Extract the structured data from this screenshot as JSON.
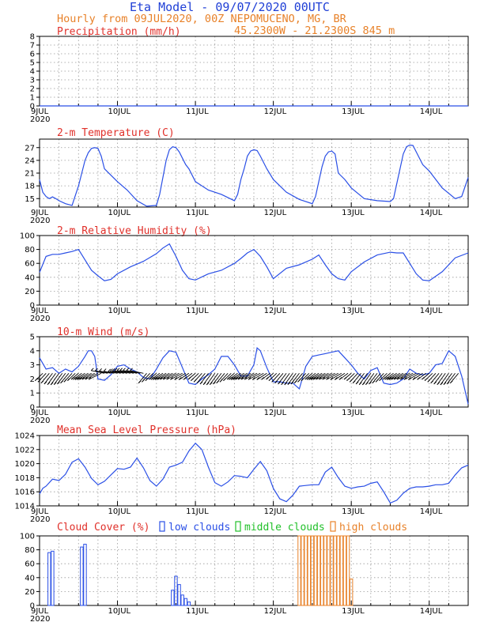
{
  "header": {
    "line1": "Eta Model - 09/07/2020 00UTC",
    "line2": "Hourly from 09JUL2020, 00Z  NEPOMUCENO, MG, BR",
    "line3": "45.2300W - 21.2300S     845  m"
  },
  "x_axis": {
    "labels": [
      "9JUL",
      "10JUL",
      "11JUL",
      "12JUL",
      "13JUL",
      "14JUL"
    ],
    "year": "2020",
    "range_hours": [
      0,
      132
    ]
  },
  "legend": {
    "low": "low clouds",
    "middle": "middle clouds",
    "high": "high clouds"
  },
  "colors": {
    "series": "#2a4fe6",
    "title": "#e0302a",
    "low": "#2a4fe6",
    "middle": "#22c02a",
    "high": "#e8822a",
    "wind_barb": "#000000"
  },
  "chart_data": [
    {
      "id": "precip",
      "type": "line",
      "title": "Precipitation (mm/h)",
      "ylim": [
        0,
        8
      ],
      "yticks": [
        0,
        1,
        2,
        3,
        4,
        5,
        6,
        7,
        8
      ],
      "x": [
        0,
        132
      ],
      "y": [
        0,
        0
      ]
    },
    {
      "id": "temp",
      "type": "line",
      "title": "2-m Temperature (C)",
      "ylim": [
        13,
        29
      ],
      "yticks": [
        15,
        18,
        21,
        24,
        27
      ],
      "x": [
        0,
        1,
        2,
        3,
        4,
        5,
        6,
        8,
        10,
        12,
        14,
        15,
        16,
        17,
        18,
        19,
        20,
        22,
        24,
        27,
        30,
        33,
        36,
        37,
        38,
        39,
        40,
        41,
        42,
        43,
        45,
        46,
        48,
        52,
        56,
        60,
        61,
        62,
        63,
        64,
        65,
        66,
        67,
        68,
        70,
        72,
        76,
        80,
        84,
        85,
        86,
        87,
        88,
        89,
        90,
        91,
        92,
        94,
        96,
        100,
        104,
        108,
        109,
        110,
        111,
        112,
        113,
        114,
        115,
        116,
        118,
        120,
        124,
        128,
        130,
        132
      ],
      "y": [
        19.5,
        16.5,
        15.5,
        15.0,
        15.4,
        15.0,
        14.5,
        13.8,
        13.4,
        18.0,
        24.0,
        25.8,
        26.8,
        27.0,
        26.8,
        25.0,
        22.0,
        20.5,
        19.0,
        17.0,
        14.5,
        13.2,
        13.4,
        16.0,
        20.0,
        24.0,
        26.5,
        27.2,
        27.0,
        26.0,
        23.0,
        22.0,
        19.0,
        17.0,
        16.0,
        14.5,
        16.0,
        19.5,
        22.0,
        25.0,
        26.2,
        26.5,
        26.3,
        25.0,
        22.0,
        19.5,
        16.5,
        14.8,
        13.8,
        15.5,
        19.0,
        22.5,
        25.0,
        26.0,
        26.2,
        25.5,
        21.0,
        19.5,
        17.5,
        15.0,
        14.5,
        14.3,
        15.0,
        18.5,
        22.0,
        25.5,
        27.2,
        27.6,
        27.5,
        26.0,
        23.0,
        21.5,
        17.5,
        15.0,
        15.5,
        20.0
      ]
    },
    {
      "id": "rh",
      "type": "line",
      "title": "2-m Relative Humidity (%)",
      "ylim": [
        0,
        100
      ],
      "yticks": [
        0,
        20,
        40,
        60,
        80,
        100
      ],
      "x": [
        0,
        2,
        4,
        6,
        8,
        10,
        12,
        14,
        16,
        18,
        20,
        22,
        24,
        28,
        32,
        36,
        38,
        40,
        42,
        44,
        46,
        48,
        52,
        56,
        60,
        62,
        64,
        66,
        68,
        70,
        72,
        76,
        80,
        84,
        86,
        88,
        90,
        92,
        94,
        96,
        100,
        104,
        108,
        110,
        112,
        114,
        116,
        118,
        120,
        124,
        128,
        132
      ],
      "y": [
        47,
        70,
        73,
        73,
        75,
        77,
        80,
        65,
        50,
        42,
        35,
        37,
        45,
        55,
        63,
        74,
        82,
        88,
        70,
        50,
        38,
        36,
        45,
        50,
        60,
        67,
        75,
        80,
        70,
        55,
        38,
        53,
        58,
        66,
        72,
        58,
        45,
        38,
        36,
        48,
        62,
        72,
        76,
        75,
        75,
        60,
        45,
        36,
        35,
        48,
        68,
        75
      ]
    },
    {
      "id": "wind",
      "type": "line",
      "title": "10-m Wind (m/s)",
      "ylim": [
        0,
        5
      ],
      "yticks": [
        0,
        1,
        2,
        3,
        4,
        5
      ],
      "x": [
        0,
        2,
        4,
        6,
        8,
        10,
        12,
        14,
        15,
        16,
        17,
        18,
        20,
        22,
        24,
        26,
        28,
        30,
        32,
        34,
        36,
        38,
        40,
        42,
        44,
        46,
        48,
        50,
        52,
        54,
        56,
        58,
        60,
        62,
        64,
        66,
        67,
        68,
        70,
        72,
        74,
        76,
        78,
        80,
        82,
        84,
        86,
        88,
        90,
        92,
        94,
        96,
        98,
        100,
        102,
        104,
        106,
        108,
        110,
        112,
        114,
        116,
        118,
        120,
        122,
        124,
        126,
        128,
        130,
        132
      ],
      "y": [
        3.5,
        2.7,
        2.8,
        2.4,
        2.7,
        2.5,
        2.9,
        3.6,
        4.0,
        4.0,
        3.6,
        2.0,
        1.9,
        2.3,
        2.9,
        3.0,
        2.7,
        2.5,
        2.1,
        2.0,
        2.7,
        3.5,
        4.0,
        3.9,
        2.8,
        1.7,
        1.6,
        2.0,
        2.3,
        2.7,
        3.6,
        3.6,
        3.0,
        2.2,
        2.2,
        3.0,
        4.2,
        4.0,
        2.8,
        1.8,
        1.8,
        1.7,
        1.7,
        1.3,
        2.9,
        3.6,
        3.7,
        3.8,
        3.9,
        4.0,
        3.5,
        3.0,
        2.4,
        2.0,
        2.6,
        2.8,
        1.7,
        1.6,
        1.7,
        2.0,
        2.7,
        2.4,
        2.3,
        2.4,
        3.0,
        3.1,
        4.0,
        3.6,
        2.2,
        0.2
      ]
    },
    {
      "id": "mslp",
      "type": "line",
      "title": "Mean Sea Level Pressure (hPa)",
      "ylim": [
        1014,
        1024
      ],
      "yticks": [
        1014,
        1016,
        1018,
        1020,
        1022,
        1024
      ],
      "x": [
        0,
        1,
        2,
        4,
        6,
        8,
        10,
        12,
        14,
        16,
        18,
        20,
        22,
        24,
        26,
        28,
        30,
        32,
        34,
        36,
        38,
        40,
        42,
        44,
        46,
        48,
        50,
        52,
        54,
        56,
        58,
        60,
        62,
        64,
        66,
        68,
        70,
        72,
        74,
        76,
        78,
        80,
        82,
        84,
        86,
        88,
        90,
        92,
        94,
        96,
        98,
        100,
        102,
        104,
        106,
        108,
        110,
        112,
        114,
        116,
        118,
        120,
        122,
        124,
        126,
        128,
        130,
        132
      ],
      "y": [
        1015.7,
        1016.5,
        1016.8,
        1017.8,
        1017.6,
        1018.5,
        1020.2,
        1020.7,
        1019.5,
        1017.9,
        1017.0,
        1017.5,
        1018.4,
        1019.3,
        1019.2,
        1019.5,
        1020.8,
        1019.4,
        1017.6,
        1016.8,
        1017.8,
        1019.5,
        1019.8,
        1020.2,
        1021.8,
        1022.9,
        1022.0,
        1019.5,
        1017.3,
        1016.8,
        1017.4,
        1018.3,
        1018.2,
        1018.0,
        1019.2,
        1020.3,
        1019.0,
        1016.5,
        1015.0,
        1014.6,
        1015.5,
        1016.8,
        1016.9,
        1017.0,
        1017.0,
        1018.8,
        1019.5,
        1018.0,
        1016.8,
        1016.5,
        1016.7,
        1016.8,
        1017.2,
        1017.4,
        1016.0,
        1014.4,
        1014.8,
        1015.8,
        1016.5,
        1016.7,
        1016.7,
        1016.8,
        1017.0,
        1017.0,
        1017.2,
        1018.4,
        1019.4,
        1019.8
      ]
    },
    {
      "id": "cloud",
      "type": "bar",
      "title": "Cloud Cover (%)",
      "ylim": [
        0,
        100
      ],
      "yticks": [
        0,
        20,
        40,
        60,
        80,
        100
      ],
      "series": [
        {
          "name": "low clouds",
          "x": [
            3,
            4,
            13,
            14,
            41,
            42,
            43,
            44,
            45,
            46
          ],
          "values": [
            76,
            78,
            84,
            88,
            22,
            42,
            30,
            15,
            10,
            5
          ]
        },
        {
          "name": "middle clouds",
          "x": [],
          "values": []
        },
        {
          "name": "high clouds",
          "x": [
            80,
            81,
            82,
            83,
            84,
            85,
            86,
            87,
            88,
            89,
            90,
            91,
            92,
            93,
            94,
            95,
            96
          ],
          "values": [
            100,
            100,
            100,
            100,
            100,
            100,
            100,
            100,
            100,
            100,
            100,
            100,
            100,
            100,
            100,
            100,
            38
          ]
        }
      ]
    }
  ]
}
